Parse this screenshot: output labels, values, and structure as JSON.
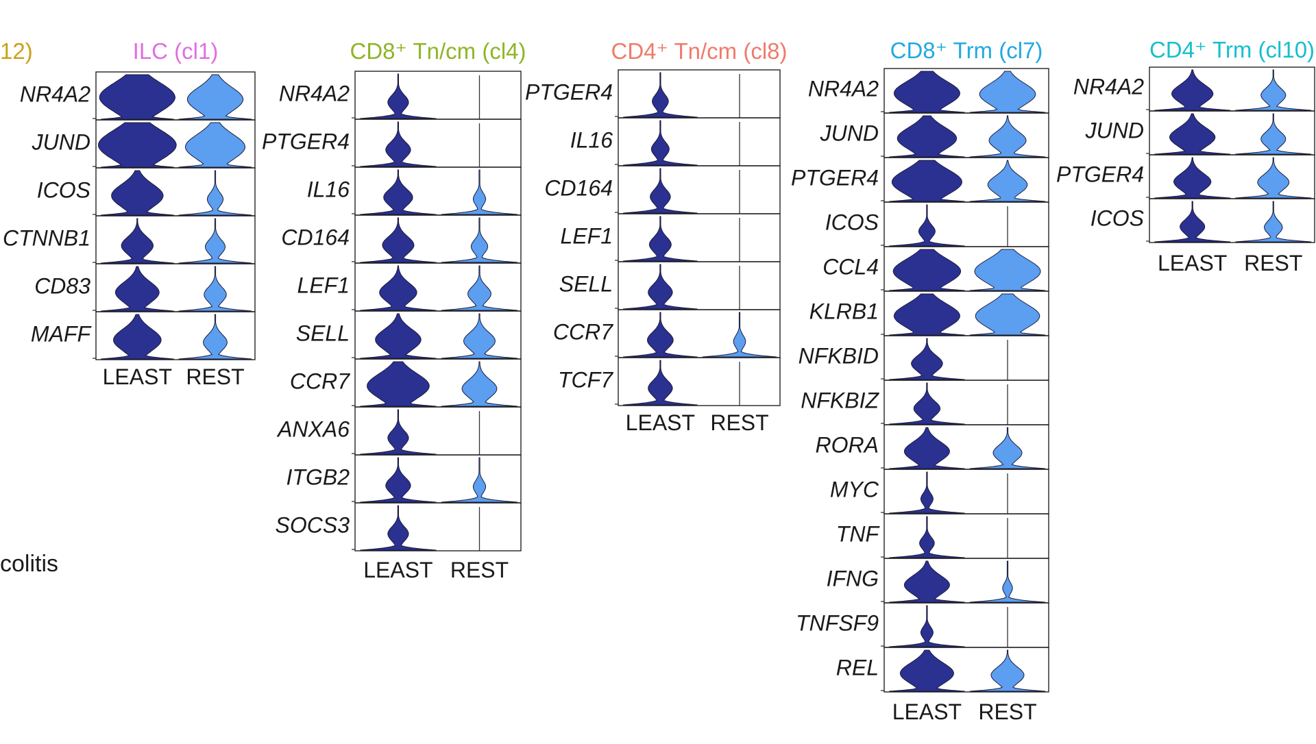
{
  "colors": {
    "least": "#2b3191",
    "rest": "#5c9ef0",
    "stroke": "#1b1b3a",
    "frame": "#222222"
  },
  "side_labels": {
    "prev_title": "12)",
    "prev_title_color": "#c8a21a",
    "colitis": "colitis"
  },
  "chart_data": [
    {
      "type": "violin",
      "title": "ILC (cl1)",
      "title_color": "#e36ee0",
      "categories": [
        "LEAST",
        "REST"
      ],
      "genes": [
        "NR4A2",
        "JUND",
        "ICOS",
        "CTNNB1",
        "CD83",
        "MAFF"
      ],
      "series": [
        {
          "name": "LEAST",
          "spread": [
            0.95,
            0.98,
            0.65,
            0.4,
            0.55,
            0.6
          ]
        },
        {
          "name": "REST",
          "spread": [
            0.7,
            0.75,
            0.2,
            0.25,
            0.28,
            0.3
          ]
        }
      ]
    },
    {
      "type": "violin",
      "title": "CD8⁺ Tn/cm (cl4)",
      "title_color": "#8eb526",
      "categories": [
        "LEAST",
        "REST"
      ],
      "genes": [
        "NR4A2",
        "PTGER4",
        "IL16",
        "CD164",
        "LEF1",
        "SELL",
        "CCR7",
        "ANXA6",
        "ITGB2",
        "SOCS3"
      ],
      "series": [
        {
          "name": "LEAST",
          "spread": [
            0.25,
            0.3,
            0.35,
            0.38,
            0.45,
            0.55,
            0.75,
            0.25,
            0.3,
            0.25
          ]
        },
        {
          "name": "REST",
          "spread": [
            0.0,
            0.0,
            0.15,
            0.2,
            0.28,
            0.38,
            0.42,
            0.0,
            0.15,
            0.0
          ]
        }
      ]
    },
    {
      "type": "violin",
      "title": "CD4⁺ Tn/cm (cl8)",
      "title_color": "#ef7b6b",
      "categories": [
        "LEAST",
        "REST"
      ],
      "genes": [
        "PTGER4",
        "IL16",
        "CD164",
        "LEF1",
        "SELL",
        "CCR7",
        "TCF7"
      ],
      "series": [
        {
          "name": "LEAST",
          "spread": [
            0.2,
            0.22,
            0.25,
            0.27,
            0.3,
            0.32,
            0.3
          ]
        },
        {
          "name": "REST",
          "spread": [
            0.0,
            0.0,
            0.0,
            0.0,
            0.0,
            0.15,
            0.0
          ]
        }
      ]
    },
    {
      "type": "violin",
      "title": "CD8⁺ Trm (cl7)",
      "title_color": "#21a9e0",
      "categories": [
        "LEAST",
        "REST"
      ],
      "genes": [
        "NR4A2",
        "JUND",
        "PTGER4",
        "ICOS",
        "CCL4",
        "KLRB1",
        "NFKBID",
        "NFKBIZ",
        "RORA",
        "MYC",
        "TNF",
        "IFNG",
        "TNFSF9",
        "REL"
      ],
      "series": [
        {
          "name": "LEAST",
          "spread": [
            0.8,
            0.72,
            0.85,
            0.2,
            0.82,
            0.8,
            0.38,
            0.32,
            0.55,
            0.15,
            0.18,
            0.55,
            0.15,
            0.65
          ]
        },
        {
          "name": "REST",
          "spread": [
            0.68,
            0.45,
            0.48,
            0.0,
            0.8,
            0.78,
            0.0,
            0.0,
            0.35,
            0.0,
            0.0,
            0.12,
            0.0,
            0.4
          ]
        }
      ]
    },
    {
      "type": "violin",
      "title": "CD4⁺ Trm (cl10)",
      "title_color": "#16bfcc",
      "categories": [
        "LEAST",
        "REST"
      ],
      "genes": [
        "NR4A2",
        "JUND",
        "PTGER4",
        "ICOS"
      ],
      "series": [
        {
          "name": "LEAST",
          "spread": [
            0.5,
            0.55,
            0.45,
            0.3
          ]
        },
        {
          "name": "REST",
          "spread": [
            0.3,
            0.3,
            0.38,
            0.22
          ]
        }
      ]
    }
  ]
}
